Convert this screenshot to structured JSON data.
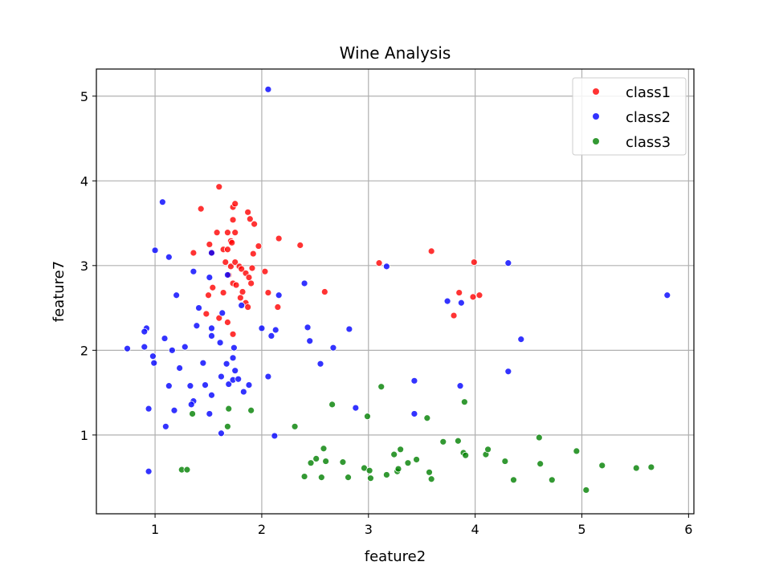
{
  "chart_data": {
    "type": "scatter",
    "title": "Wine Analysis",
    "xlabel": "feature2",
    "ylabel": "feature7",
    "xlim": [
      0.45,
      6.05
    ],
    "ylim": [
      0.07,
      5.32
    ],
    "xticks": [
      1,
      2,
      3,
      4,
      5,
      6
    ],
    "yticks": [
      1,
      2,
      3,
      4,
      5
    ],
    "grid": true,
    "legend_position": "top-right",
    "series": [
      {
        "name": "class1",
        "color": "#ff0000",
        "points": [
          [
            1.6,
            3.93
          ],
          [
            1.43,
            3.67
          ],
          [
            1.73,
            3.69
          ],
          [
            1.75,
            3.73
          ],
          [
            1.58,
            3.39
          ],
          [
            1.68,
            3.39
          ],
          [
            1.75,
            3.39
          ],
          [
            1.87,
            3.63
          ],
          [
            1.89,
            3.55
          ],
          [
            1.93,
            3.49
          ],
          [
            1.73,
            3.54
          ],
          [
            1.71,
            3.29
          ],
          [
            1.72,
            3.27
          ],
          [
            1.51,
            3.25
          ],
          [
            1.36,
            3.15
          ],
          [
            1.53,
            3.15
          ],
          [
            1.64,
            3.19
          ],
          [
            1.68,
            3.19
          ],
          [
            1.97,
            3.23
          ],
          [
            2.16,
            3.32
          ],
          [
            2.36,
            3.24
          ],
          [
            1.92,
            3.14
          ],
          [
            1.66,
            3.04
          ],
          [
            1.71,
            2.99
          ],
          [
            1.75,
            3.04
          ],
          [
            1.79,
            2.99
          ],
          [
            1.81,
            2.96
          ],
          [
            1.85,
            2.91
          ],
          [
            1.88,
            2.86
          ],
          [
            1.91,
            2.97
          ],
          [
            2.03,
            2.93
          ],
          [
            1.69,
            2.89
          ],
          [
            1.73,
            2.79
          ],
          [
            1.76,
            2.77
          ],
          [
            1.82,
            2.69
          ],
          [
            1.8,
            2.62
          ],
          [
            1.85,
            2.56
          ],
          [
            1.87,
            2.51
          ],
          [
            1.9,
            2.79
          ],
          [
            1.54,
            2.74
          ],
          [
            1.5,
            2.65
          ],
          [
            1.64,
            2.68
          ],
          [
            2.06,
            2.68
          ],
          [
            2.15,
            2.51
          ],
          [
            1.48,
            2.43
          ],
          [
            1.6,
            2.38
          ],
          [
            1.68,
            2.33
          ],
          [
            1.73,
            2.19
          ],
          [
            2.59,
            2.69
          ],
          [
            3.1,
            3.03
          ],
          [
            3.59,
            3.17
          ],
          [
            3.85,
            2.68
          ],
          [
            3.8,
            2.41
          ],
          [
            3.98,
            2.63
          ],
          [
            4.04,
            2.65
          ],
          [
            3.99,
            3.04
          ]
        ]
      },
      {
        "name": "class2",
        "color": "#0000ff",
        "points": [
          [
            2.06,
            5.08
          ],
          [
            1.07,
            3.75
          ],
          [
            1.0,
            3.18
          ],
          [
            1.13,
            3.1
          ],
          [
            1.53,
            3.15
          ],
          [
            1.36,
            2.93
          ],
          [
            1.51,
            2.86
          ],
          [
            1.68,
            2.89
          ],
          [
            1.2,
            2.65
          ],
          [
            1.41,
            2.5
          ],
          [
            1.63,
            2.44
          ],
          [
            1.81,
            2.53
          ],
          [
            2.16,
            2.65
          ],
          [
            2.4,
            2.79
          ],
          [
            1.39,
            2.29
          ],
          [
            1.53,
            2.26
          ],
          [
            1.53,
            2.17
          ],
          [
            1.61,
            2.09
          ],
          [
            1.74,
            2.03
          ],
          [
            1.73,
            1.91
          ],
          [
            1.09,
            2.14
          ],
          [
            0.92,
            2.26
          ],
          [
            0.9,
            2.22
          ],
          [
            0.74,
            2.02
          ],
          [
            0.9,
            2.04
          ],
          [
            0.98,
            1.93
          ],
          [
            0.99,
            1.85
          ],
          [
            1.16,
            2.0
          ],
          [
            1.28,
            2.04
          ],
          [
            1.23,
            1.79
          ],
          [
            1.45,
            1.85
          ],
          [
            1.67,
            1.84
          ],
          [
            1.75,
            1.76
          ],
          [
            1.62,
            1.69
          ],
          [
            1.69,
            1.6
          ],
          [
            1.73,
            1.65
          ],
          [
            1.78,
            1.66
          ],
          [
            1.83,
            1.51
          ],
          [
            1.88,
            1.59
          ],
          [
            1.13,
            1.58
          ],
          [
            1.33,
            1.58
          ],
          [
            1.47,
            1.59
          ],
          [
            1.53,
            1.47
          ],
          [
            1.36,
            1.4
          ],
          [
            1.34,
            1.36
          ],
          [
            1.18,
            1.29
          ],
          [
            1.51,
            1.25
          ],
          [
            0.94,
            1.31
          ],
          [
            1.1,
            1.1
          ],
          [
            1.62,
            1.02
          ],
          [
            0.94,
            0.57
          ],
          [
            2.0,
            2.26
          ],
          [
            2.09,
            2.17
          ],
          [
            2.13,
            2.24
          ],
          [
            2.43,
            2.27
          ],
          [
            2.45,
            2.11
          ],
          [
            2.67,
            2.03
          ],
          [
            2.82,
            2.25
          ],
          [
            2.55,
            1.84
          ],
          [
            2.06,
            1.69
          ],
          [
            2.12,
            0.99
          ],
          [
            2.88,
            1.32
          ],
          [
            3.17,
            2.99
          ],
          [
            3.43,
            1.64
          ],
          [
            3.43,
            1.25
          ],
          [
            3.74,
            2.58
          ],
          [
            3.87,
            2.56
          ],
          [
            3.86,
            1.58
          ],
          [
            4.31,
            3.03
          ],
          [
            4.31,
            1.75
          ],
          [
            4.43,
            2.13
          ],
          [
            5.8,
            2.65
          ]
        ]
      },
      {
        "name": "class3",
        "color": "#008000",
        "points": [
          [
            1.35,
            1.25
          ],
          [
            1.25,
            0.59
          ],
          [
            1.3,
            0.59
          ],
          [
            1.68,
            1.1
          ],
          [
            1.69,
            1.31
          ],
          [
            1.9,
            1.29
          ],
          [
            2.31,
            1.1
          ],
          [
            2.4,
            0.51
          ],
          [
            2.46,
            0.67
          ],
          [
            2.51,
            0.72
          ],
          [
            2.56,
            0.5
          ],
          [
            2.58,
            0.84
          ],
          [
            2.6,
            0.69
          ],
          [
            2.66,
            1.36
          ],
          [
            2.76,
            0.68
          ],
          [
            2.81,
            0.5
          ],
          [
            2.96,
            0.61
          ],
          [
            2.99,
            1.22
          ],
          [
            3.01,
            0.58
          ],
          [
            3.02,
            0.49
          ],
          [
            3.12,
            1.57
          ],
          [
            3.17,
            0.53
          ],
          [
            3.24,
            0.77
          ],
          [
            3.27,
            0.57
          ],
          [
            3.28,
            0.6
          ],
          [
            3.3,
            0.83
          ],
          [
            3.37,
            0.67
          ],
          [
            3.45,
            0.71
          ],
          [
            3.55,
            1.2
          ],
          [
            3.57,
            0.56
          ],
          [
            3.59,
            0.48
          ],
          [
            3.7,
            0.92
          ],
          [
            3.84,
            0.93
          ],
          [
            3.89,
            0.79
          ],
          [
            3.91,
            0.76
          ],
          [
            3.9,
            1.39
          ],
          [
            4.1,
            0.77
          ],
          [
            4.12,
            0.83
          ],
          [
            4.28,
            0.69
          ],
          [
            4.36,
            0.47
          ],
          [
            4.6,
            0.97
          ],
          [
            4.61,
            0.66
          ],
          [
            4.72,
            0.47
          ],
          [
            4.95,
            0.81
          ],
          [
            5.04,
            0.35
          ],
          [
            5.19,
            0.64
          ],
          [
            5.51,
            0.61
          ],
          [
            5.65,
            0.62
          ]
        ]
      }
    ]
  }
}
